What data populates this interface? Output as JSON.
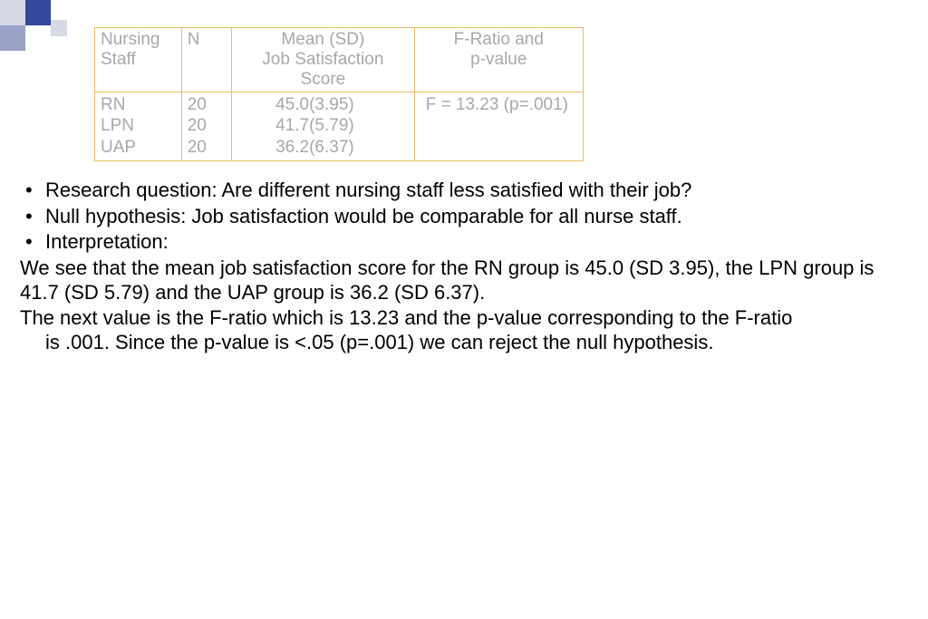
{
  "table": {
    "border_color": "#e8c060",
    "text_color": "#a8a8a8",
    "header": {
      "col1_line1": "Nursing",
      "col1_line2": "Staff",
      "col2": "N",
      "col3_line1": "Mean (SD)",
      "col3_line2": "Job Satisfaction Score",
      "col4_line1": "F-Ratio and",
      "col4_line2": "p-value"
    },
    "rows": [
      {
        "staff": "RN",
        "n": "20",
        "mean": "45.0(3.95)"
      },
      {
        "staff": "LPN",
        "n": "20",
        "mean": "41.7(5.79)"
      },
      {
        "staff": "UAP",
        "n": "20",
        "mean": "36.2(6.37)"
      }
    ],
    "f_result": "F = 13.23 (p=.001)"
  },
  "bullets": {
    "b1": "Research question: Are different nursing staff less satisfied with their job?",
    "b2": "Null hypothesis: Job satisfaction would be comparable for all nurse staff.",
    "b3": "Interpretation:"
  },
  "paragraphs": {
    "p1": "We see that the mean job satisfaction score for the RN group is 45.0 (SD 3.95), the LPN group is 41.7 (SD 5.79) and the UAP group is 36.2 (SD 6.37).",
    "p2a": "The next value is the F-ratio which is 13.23 and the p-value corresponding to the F-ratio",
    "p2b": "is .001. Since the p-value is <.05 (p=.001) we can reject the null hypothesis."
  },
  "colors": {
    "deco_light": "#d6d9e6",
    "deco_dark": "#34499e",
    "deco_mid": "#9ba3c8",
    "text_body": "#000000",
    "background": "#ffffff"
  }
}
